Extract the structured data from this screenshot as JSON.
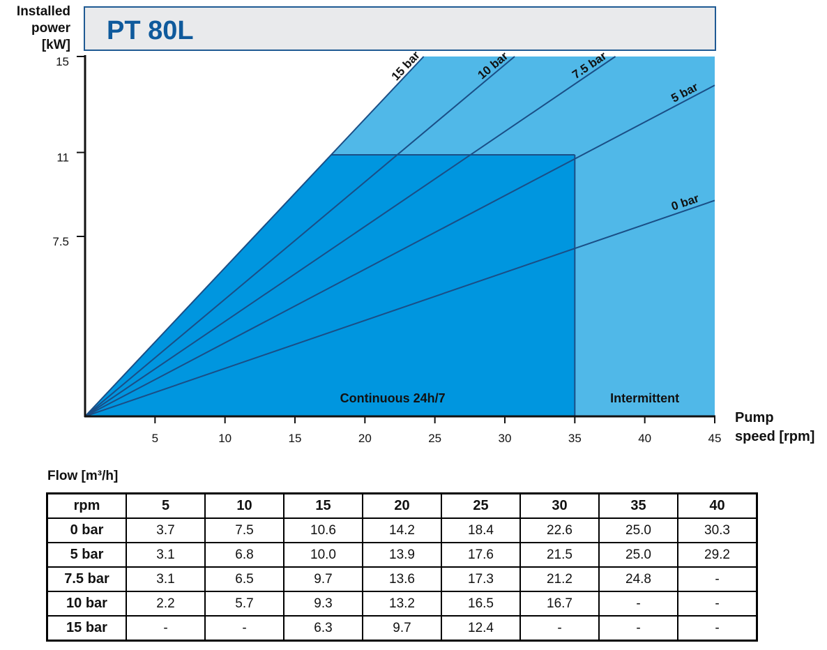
{
  "chart_data": {
    "type": "line",
    "title": "PT 80L",
    "ylabel": [
      "Installed",
      "power",
      "[kW]"
    ],
    "xlabel": [
      "Pump",
      "speed [rpm]"
    ],
    "xlim": [
      0,
      45
    ],
    "ylim": [
      0,
      15
    ],
    "x_ticks": [
      5,
      10,
      15,
      20,
      25,
      30,
      35,
      40,
      45
    ],
    "y_ticks": [
      {
        "value": 7.5,
        "label": "7.5"
      },
      {
        "value": 11,
        "label": "11"
      },
      {
        "value": 15,
        "label": "15"
      }
    ],
    "series": [
      {
        "name": "0 bar",
        "points": [
          [
            0,
            0
          ],
          [
            45,
            9.0
          ]
        ]
      },
      {
        "name": "5 bar",
        "points": [
          [
            0,
            0
          ],
          [
            45,
            13.8
          ]
        ]
      },
      {
        "name": "7.5 bar",
        "points": [
          [
            0,
            0
          ],
          [
            37.9,
            15
          ]
        ]
      },
      {
        "name": "10 bar",
        "points": [
          [
            0,
            0
          ],
          [
            30.7,
            15
          ]
        ]
      },
      {
        "name": "15 bar",
        "points": [
          [
            0,
            0
          ],
          [
            24.2,
            15
          ]
        ]
      }
    ],
    "regions": [
      {
        "name": "Continuous 24h/7",
        "x_max": 35,
        "y_max": 10.9
      },
      {
        "name": "Intermittent",
        "x_min": 35,
        "x_max": 45
      }
    ],
    "colors": {
      "continuous": "#0096DF",
      "intermittent": "#50B8E8",
      "line": "#1A4E86",
      "title_text": "#0F5A9C",
      "title_bg": "#E9EAEC"
    }
  },
  "flow_table": {
    "caption": "Flow [m³/h]",
    "header": [
      "rpm",
      "5",
      "10",
      "15",
      "20",
      "25",
      "30",
      "35",
      "40"
    ],
    "rows": [
      [
        "0 bar",
        "3.7",
        "7.5",
        "10.6",
        "14.2",
        "18.4",
        "22.6",
        "25.0",
        "30.3"
      ],
      [
        "5 bar",
        "3.1",
        "6.8",
        "10.0",
        "13.9",
        "17.6",
        "21.5",
        "25.0",
        "29.2"
      ],
      [
        "7.5 bar",
        "3.1",
        "6.5",
        "9.7",
        "13.6",
        "17.3",
        "21.2",
        "24.8",
        "-"
      ],
      [
        "10 bar",
        "2.2",
        "5.7",
        "9.3",
        "13.2",
        "16.5",
        "16.7",
        "-",
        "-"
      ],
      [
        "15 bar",
        "-",
        "-",
        "6.3",
        "9.7",
        "12.4",
        "-",
        "-",
        "-"
      ]
    ]
  }
}
